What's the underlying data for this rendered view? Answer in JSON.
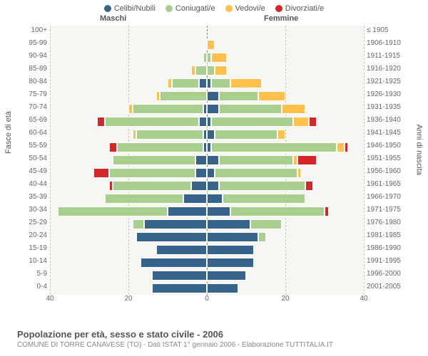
{
  "legend": [
    {
      "label": "Celibi/Nubili",
      "color": "#36648b"
    },
    {
      "label": "Coniugati/e",
      "color": "#a9cf8f"
    },
    {
      "label": "Vedovi/e",
      "color": "#ffc04c"
    },
    {
      "label": "Divorziati/e",
      "color": "#d62728"
    }
  ],
  "headers": {
    "male": "Maschi",
    "female": "Femmine"
  },
  "axis": {
    "left_title": "Fasce di età",
    "right_title": "Anni di nascita",
    "xmax": 40,
    "xticks": [
      40,
      20,
      0,
      20,
      40
    ]
  },
  "colors": {
    "single": "#36648b",
    "married": "#a9cf8f",
    "widowed": "#ffc04c",
    "divorced": "#d62728",
    "plot_bg": "#f6f6f4",
    "grid": "#c8c8c8"
  },
  "rows": [
    {
      "age": "100+",
      "birth": "≤ 1905",
      "m": {
        "s": 0,
        "c": 0,
        "w": 0,
        "d": 0
      },
      "f": {
        "s": 0,
        "c": 0,
        "w": 0,
        "d": 0
      }
    },
    {
      "age": "95-99",
      "birth": "1906-1910",
      "m": {
        "s": 0,
        "c": 0,
        "w": 0,
        "d": 0
      },
      "f": {
        "s": 0,
        "c": 0,
        "w": 2,
        "d": 0
      }
    },
    {
      "age": "90-94",
      "birth": "1911-1915",
      "m": {
        "s": 0,
        "c": 1,
        "w": 0,
        "d": 0
      },
      "f": {
        "s": 0,
        "c": 1,
        "w": 4,
        "d": 0
      }
    },
    {
      "age": "85-89",
      "birth": "1916-1920",
      "m": {
        "s": 0,
        "c": 3,
        "w": 1,
        "d": 0
      },
      "f": {
        "s": 0,
        "c": 2,
        "w": 3,
        "d": 0
      }
    },
    {
      "age": "80-84",
      "birth": "1921-1925",
      "m": {
        "s": 2,
        "c": 7,
        "w": 1,
        "d": 0
      },
      "f": {
        "s": 1,
        "c": 5,
        "w": 8,
        "d": 0
      }
    },
    {
      "age": "75-79",
      "birth": "1926-1930",
      "m": {
        "s": 0,
        "c": 12,
        "w": 1,
        "d": 0
      },
      "f": {
        "s": 3,
        "c": 10,
        "w": 7,
        "d": 0
      }
    },
    {
      "age": "70-74",
      "birth": "1931-1935",
      "m": {
        "s": 1,
        "c": 18,
        "w": 1,
        "d": 0
      },
      "f": {
        "s": 3,
        "c": 16,
        "w": 6,
        "d": 0
      }
    },
    {
      "age": "65-69",
      "birth": "1936-1940",
      "m": {
        "s": 2,
        "c": 24,
        "w": 0,
        "d": 2
      },
      "f": {
        "s": 1,
        "c": 21,
        "w": 4,
        "d": 2
      }
    },
    {
      "age": "60-64",
      "birth": "1941-1945",
      "m": {
        "s": 1,
        "c": 17,
        "w": 1,
        "d": 0
      },
      "f": {
        "s": 2,
        "c": 16,
        "w": 2,
        "d": 0
      }
    },
    {
      "age": "55-59",
      "birth": "1946-1950",
      "m": {
        "s": 1,
        "c": 22,
        "w": 0,
        "d": 2
      },
      "f": {
        "s": 1,
        "c": 32,
        "w": 2,
        "d": 1
      }
    },
    {
      "age": "50-54",
      "birth": "1951-1955",
      "m": {
        "s": 3,
        "c": 21,
        "w": 0,
        "d": 0
      },
      "f": {
        "s": 3,
        "c": 19,
        "w": 1,
        "d": 5
      }
    },
    {
      "age": "45-49",
      "birth": "1956-1960",
      "m": {
        "s": 3,
        "c": 22,
        "w": 0,
        "d": 4
      },
      "f": {
        "s": 2,
        "c": 21,
        "w": 1,
        "d": 0
      }
    },
    {
      "age": "40-44",
      "birth": "1961-1965",
      "m": {
        "s": 4,
        "c": 20,
        "w": 0,
        "d": 1
      },
      "f": {
        "s": 3,
        "c": 22,
        "w": 0,
        "d": 2
      }
    },
    {
      "age": "35-39",
      "birth": "1966-1970",
      "m": {
        "s": 6,
        "c": 20,
        "w": 0,
        "d": 0
      },
      "f": {
        "s": 4,
        "c": 21,
        "w": 0,
        "d": 0
      }
    },
    {
      "age": "30-34",
      "birth": "1971-1975",
      "m": {
        "s": 10,
        "c": 28,
        "w": 0,
        "d": 0
      },
      "f": {
        "s": 6,
        "c": 24,
        "w": 0,
        "d": 1
      }
    },
    {
      "age": "25-29",
      "birth": "1976-1980",
      "m": {
        "s": 16,
        "c": 3,
        "w": 0,
        "d": 0
      },
      "f": {
        "s": 11,
        "c": 8,
        "w": 0,
        "d": 0
      }
    },
    {
      "age": "20-24",
      "birth": "1981-1985",
      "m": {
        "s": 18,
        "c": 0,
        "w": 0,
        "d": 0
      },
      "f": {
        "s": 13,
        "c": 2,
        "w": 0,
        "d": 0
      }
    },
    {
      "age": "15-19",
      "birth": "1986-1990",
      "m": {
        "s": 13,
        "c": 0,
        "w": 0,
        "d": 0
      },
      "f": {
        "s": 12,
        "c": 0,
        "w": 0,
        "d": 0
      }
    },
    {
      "age": "10-14",
      "birth": "1991-1995",
      "m": {
        "s": 17,
        "c": 0,
        "w": 0,
        "d": 0
      },
      "f": {
        "s": 12,
        "c": 0,
        "w": 0,
        "d": 0
      }
    },
    {
      "age": "5-9",
      "birth": "1996-2000",
      "m": {
        "s": 14,
        "c": 0,
        "w": 0,
        "d": 0
      },
      "f": {
        "s": 10,
        "c": 0,
        "w": 0,
        "d": 0
      }
    },
    {
      "age": "0-4",
      "birth": "2001-2005",
      "m": {
        "s": 14,
        "c": 0,
        "w": 0,
        "d": 0
      },
      "f": {
        "s": 8,
        "c": 0,
        "w": 0,
        "d": 0
      }
    }
  ],
  "footer": {
    "title": "Popolazione per età, sesso e stato civile - 2006",
    "subtitle": "COMUNE DI TORRE CANAVESE (TO) - Dati ISTAT 1° gennaio 2006 - Elaborazione TUTTITALIA.IT"
  }
}
